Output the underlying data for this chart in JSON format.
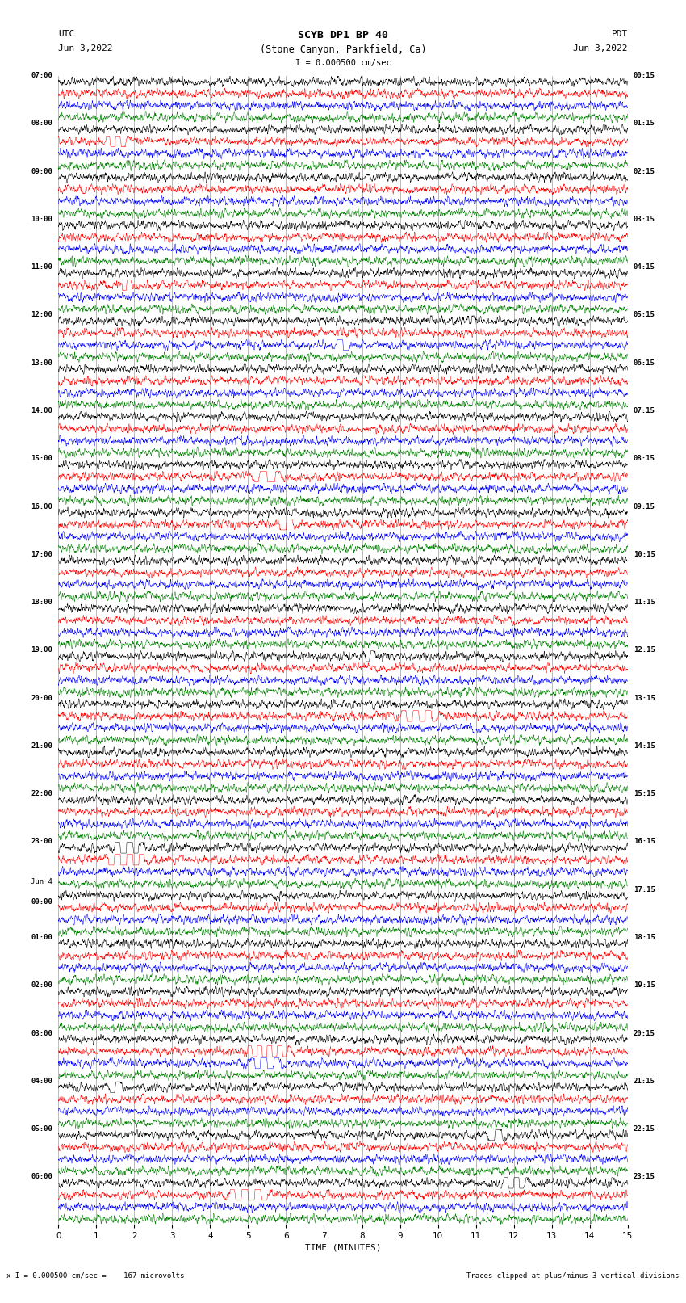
{
  "title_line1": "SCYB DP1 BP 40",
  "title_line2": "(Stone Canyon, Parkfield, Ca)",
  "scale_label": "I = 0.000500 cm/sec",
  "utc_label": "UTC",
  "utc_date": "Jun 3,2022",
  "pdt_label": "PDT",
  "pdt_date": "Jun 3,2022",
  "bottom_left": "x I = 0.000500 cm/sec =    167 microvolts",
  "bottom_right": "Traces clipped at plus/minus 3 vertical divisions",
  "xlabel": "TIME (MINUTES)",
  "left_times": [
    "07:00",
    "",
    "",
    "",
    "08:00",
    "",
    "",
    "",
    "09:00",
    "",
    "",
    "",
    "10:00",
    "",
    "",
    "",
    "11:00",
    "",
    "",
    "",
    "12:00",
    "",
    "",
    "",
    "13:00",
    "",
    "",
    "",
    "14:00",
    "",
    "",
    "",
    "15:00",
    "",
    "",
    "",
    "16:00",
    "",
    "",
    "",
    "17:00",
    "",
    "",
    "",
    "18:00",
    "",
    "",
    "",
    "19:00",
    "",
    "",
    "",
    "20:00",
    "",
    "",
    "",
    "21:00",
    "",
    "",
    "",
    "22:00",
    "",
    "",
    "",
    "23:00",
    "",
    "",
    "",
    "Jun 4",
    "00:00",
    "",
    "",
    "01:00",
    "",
    "",
    "",
    "02:00",
    "",
    "",
    "",
    "03:00",
    "",
    "",
    "",
    "04:00",
    "",
    "",
    "",
    "05:00",
    "",
    "",
    "",
    "06:00",
    "",
    "",
    ""
  ],
  "right_times": [
    "00:15",
    "",
    "",
    "",
    "01:15",
    "",
    "",
    "",
    "02:15",
    "",
    "",
    "",
    "03:15",
    "",
    "",
    "",
    "04:15",
    "",
    "",
    "",
    "05:15",
    "",
    "",
    "",
    "06:15",
    "",
    "",
    "",
    "07:15",
    "",
    "",
    "",
    "08:15",
    "",
    "",
    "",
    "09:15",
    "",
    "",
    "",
    "10:15",
    "",
    "",
    "",
    "11:15",
    "",
    "",
    "",
    "12:15",
    "",
    "",
    "",
    "13:15",
    "",
    "",
    "",
    "14:15",
    "",
    "",
    "",
    "15:15",
    "",
    "",
    "",
    "16:15",
    "",
    "",
    "",
    "17:15",
    "",
    "",
    "",
    "18:15",
    "",
    "",
    "",
    "19:15",
    "",
    "",
    "",
    "20:15",
    "",
    "",
    "",
    "21:15",
    "",
    "",
    "",
    "22:15",
    "",
    "",
    "",
    "23:15",
    "",
    "",
    ""
  ],
  "trace_colors": [
    "black",
    "red",
    "blue",
    "green"
  ],
  "n_rows": 96,
  "x_min": 0,
  "x_max": 15,
  "x_ticks": [
    0,
    1,
    2,
    3,
    4,
    5,
    6,
    7,
    8,
    9,
    10,
    11,
    12,
    13,
    14,
    15
  ],
  "background_color": "white",
  "seed": 42
}
